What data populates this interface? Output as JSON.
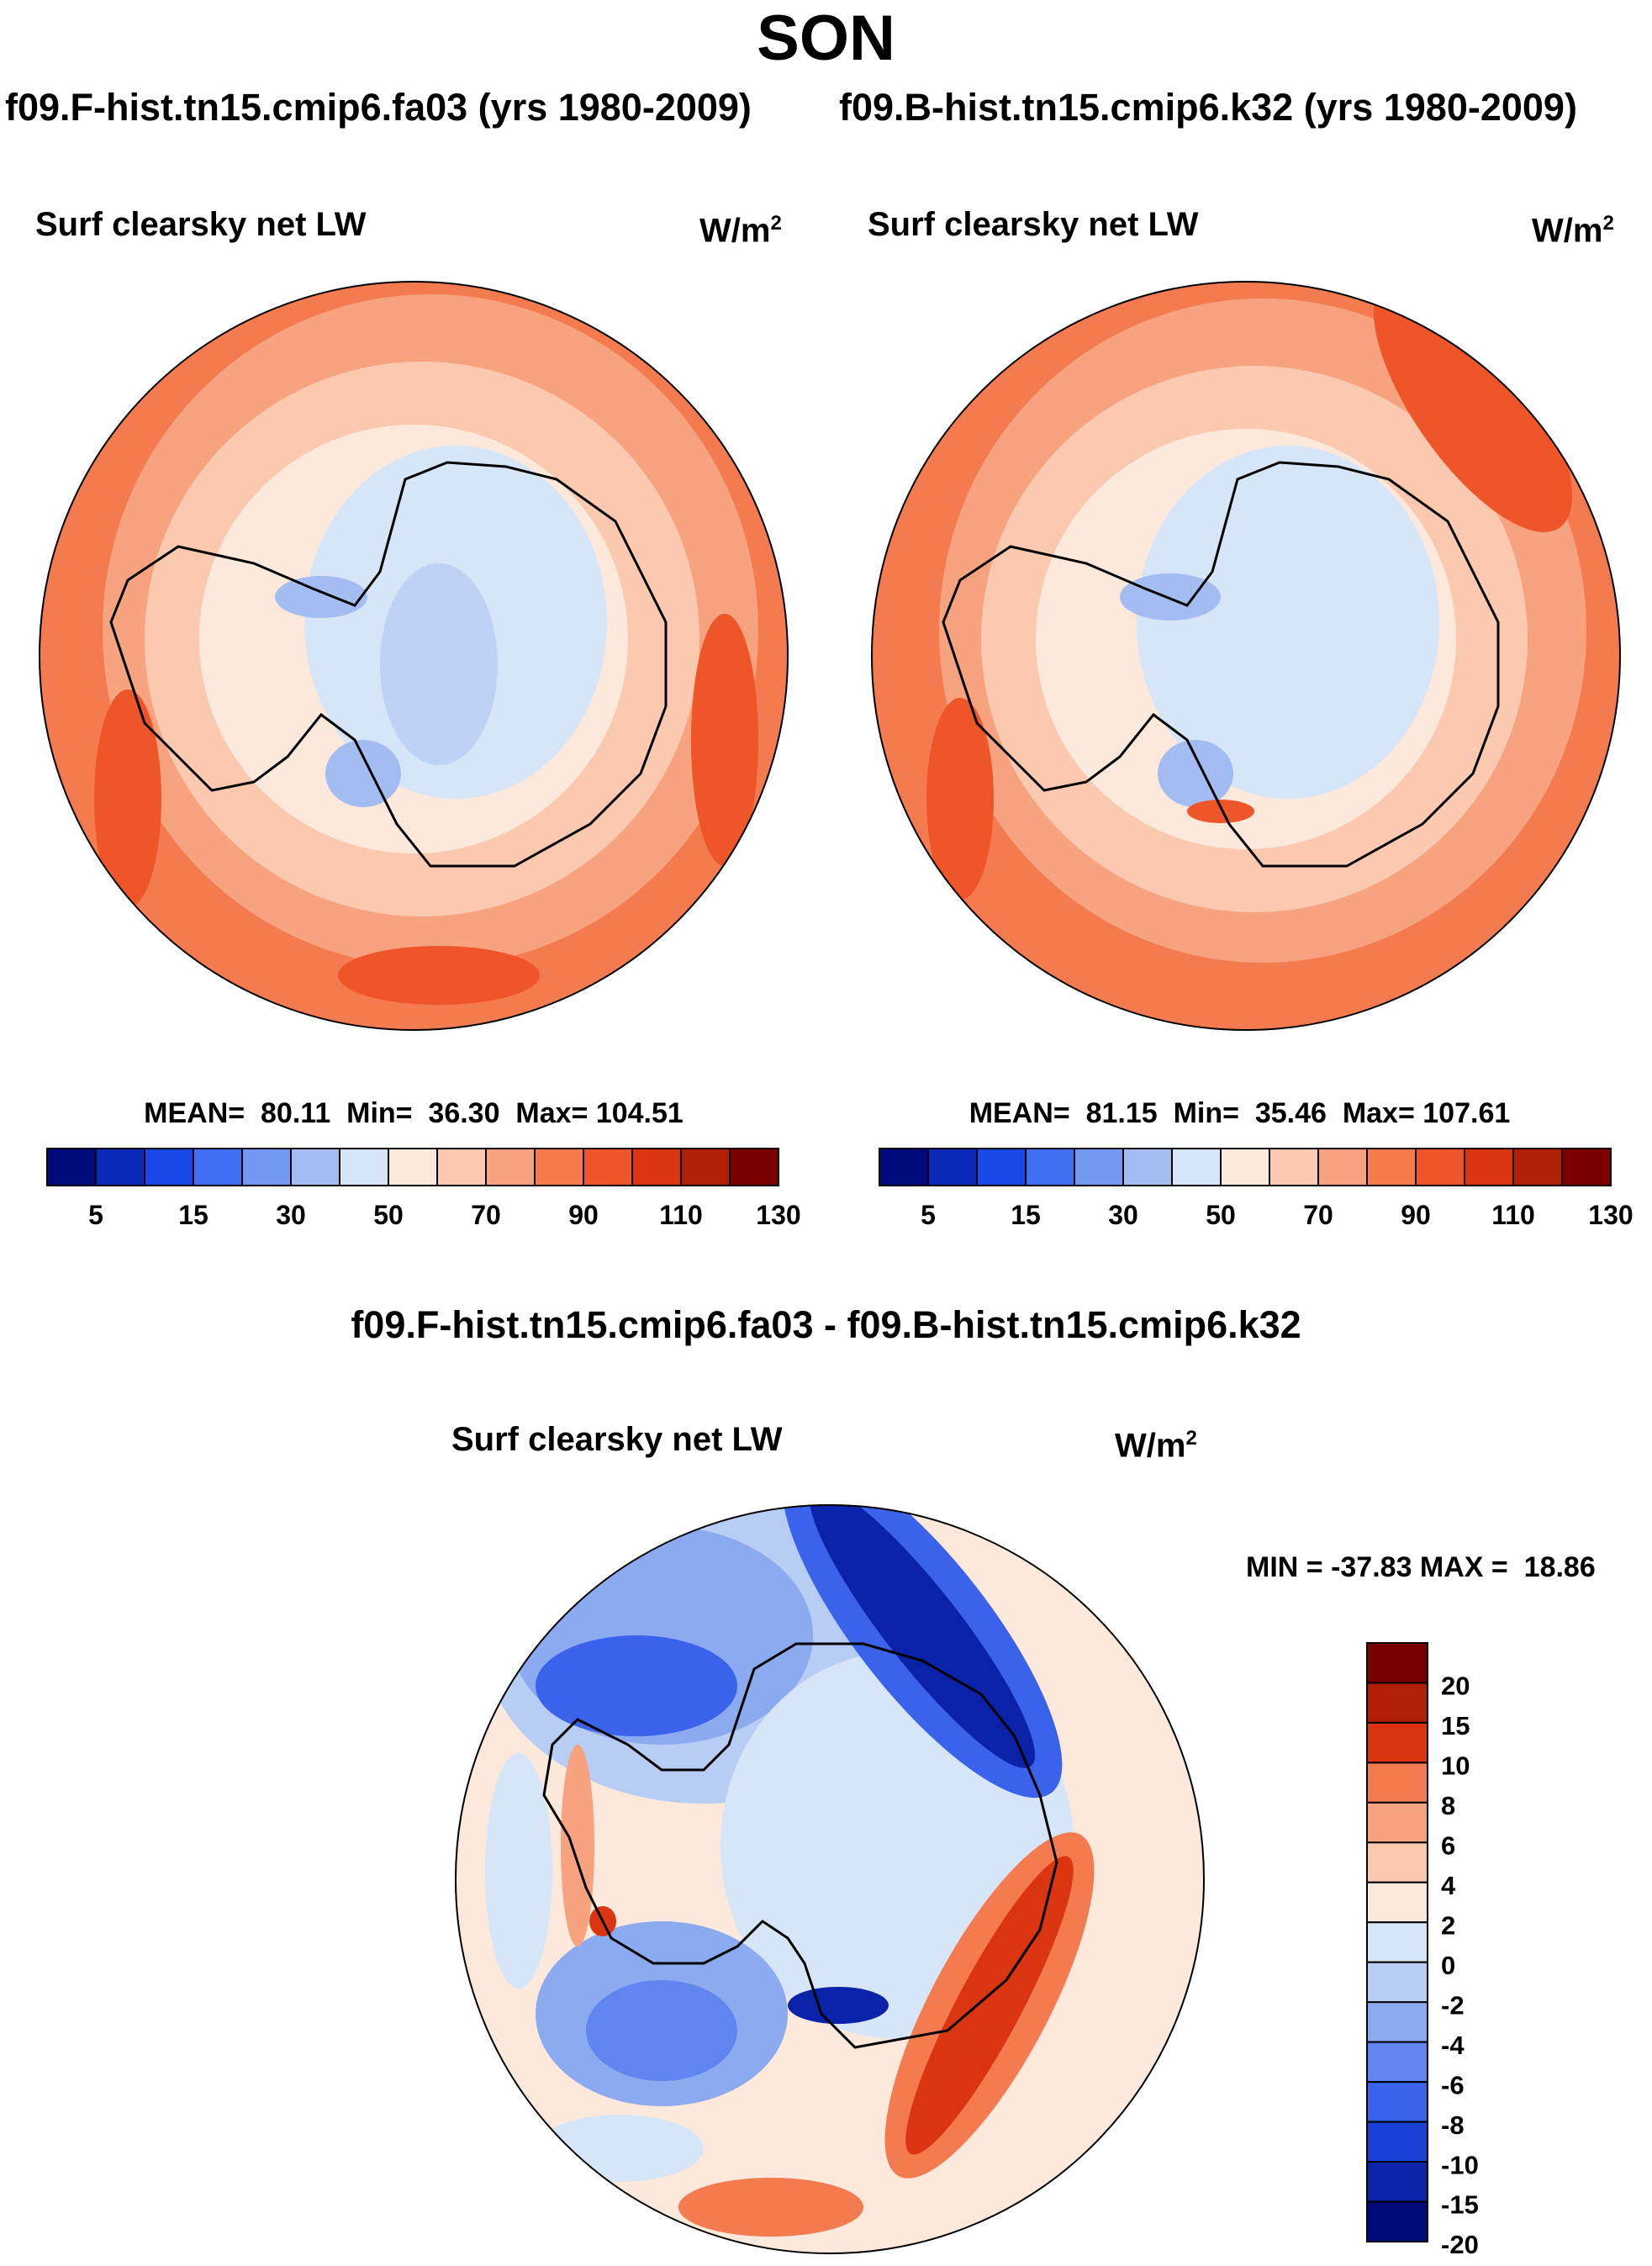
{
  "title": "SON",
  "case_header": {
    "left": "f09.F-hist.tn15.cmip6.fa03 (yrs 1980-2009)",
    "right": "f09.B-hist.tn15.cmip6.k32 (yrs 1980-2009)"
  },
  "panels": [
    {
      "variable": "Surf clearsky net LW",
      "units": "W/m",
      "units_exp": "2",
      "stats": "MEAN=  80.11  Min=  36.30  Max= 104.51"
    },
    {
      "variable": "Surf clearsky net LW",
      "units": "W/m",
      "units_exp": "2",
      "stats": "MEAN=  81.15  Min=  35.46  Max= 107.61"
    }
  ],
  "colorbar_top": {
    "colors": [
      "#000a7a",
      "#0a29b8",
      "#1a48e6",
      "#3f6ff0",
      "#7197ee",
      "#a3bdf2",
      "#d6e6f8",
      "#fde9dc",
      "#fbc9b0",
      "#f7a37f",
      "#f47a50",
      "#ee5528",
      "#da3510",
      "#b01e05",
      "#7a0000"
    ],
    "tick_labels": [
      "5",
      "15",
      "30",
      "50",
      "70",
      "90",
      "110",
      "130"
    ]
  },
  "diff": {
    "title": "f09.F-hist.tn15.cmip6.fa03 - f09.B-hist.tn15.cmip6.k32",
    "variable": "Surf clearsky net LW",
    "units": "W/m",
    "units_exp": "2",
    "minmax": "MIN = -37.83 MAX =  18.86"
  },
  "colorbar_diff": {
    "colors": [
      "#7a0000",
      "#b01e05",
      "#da3510",
      "#f47a50",
      "#f7a37f",
      "#fbc9b0",
      "#fde9dc",
      "#d6e6f8",
      "#b7cdf3",
      "#8caaf0",
      "#5f86ee",
      "#3a62ea",
      "#1a3fd6",
      "#0a22a8",
      "#000a7a"
    ],
    "tick_labels": [
      "20",
      "15",
      "10",
      "8",
      "6",
      "4",
      "2",
      "0",
      "-2",
      "-4",
      "-6",
      "-8",
      "-10",
      "-15",
      "-20"
    ]
  }
}
